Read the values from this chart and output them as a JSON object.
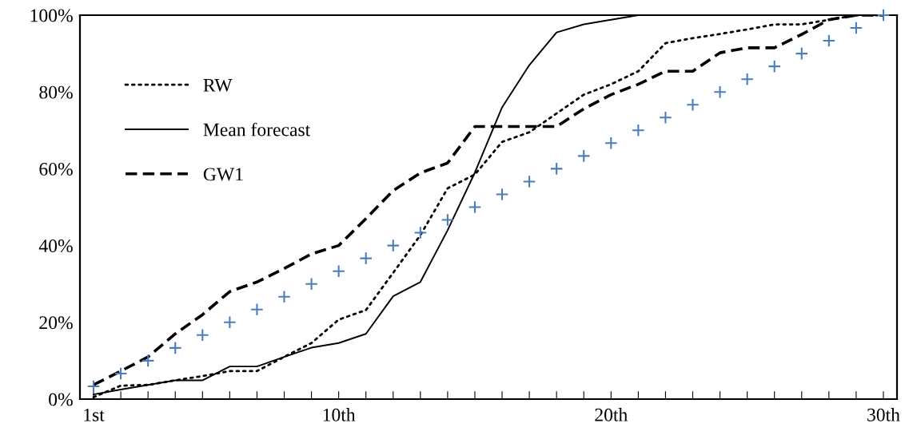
{
  "chart_data": {
    "type": "line",
    "x": [
      1,
      2,
      3,
      4,
      5,
      6,
      7,
      8,
      9,
      10,
      11,
      12,
      13,
      14,
      15,
      16,
      17,
      18,
      19,
      20,
      21,
      22,
      23,
      24,
      25,
      26,
      27,
      28,
      29,
      30
    ],
    "series": [
      {
        "name": "RW",
        "color": "#000000",
        "line_style": "dotted",
        "values": [
          0.5,
          3.5,
          3.7,
          4.9,
          6,
          7.3,
          7.3,
          11,
          14.6,
          20.7,
          23.2,
          32.9,
          42.7,
          54.9,
          58.5,
          67,
          69.5,
          74.4,
          79.3,
          82,
          85.4,
          92.7,
          94,
          95.1,
          96.3,
          97.6,
          97.6,
          98.8,
          100,
          100
        ]
      },
      {
        "name": "Mean forecast",
        "color": "#000000",
        "line_style": "solid",
        "values": [
          1.2,
          2.5,
          3.7,
          4.9,
          4.9,
          8.5,
          8.5,
          11,
          13.4,
          14.6,
          17,
          26.8,
          30.5,
          44,
          59,
          76,
          87,
          95.5,
          97.6,
          98.8,
          100,
          100,
          100,
          100,
          100,
          100,
          100,
          100,
          100,
          100
        ]
      },
      {
        "name": "GW1",
        "color": "#000000",
        "line_style": "dashed",
        "values": [
          3.7,
          7.3,
          11,
          17,
          22,
          28,
          30.5,
          34,
          37.8,
          40,
          47,
          54.3,
          58.9,
          61.5,
          71,
          71,
          71,
          71,
          75.6,
          79.3,
          82,
          85.4,
          85.4,
          90.2,
          91.5,
          91.5,
          95,
          98.8,
          100,
          100
        ]
      },
      {
        "type": "scatter",
        "marker": "cross",
        "color": "#4a7ebb",
        "values": [
          3.33,
          6.67,
          10,
          13.33,
          16.67,
          20,
          23.33,
          26.67,
          30,
          33.33,
          36.67,
          40,
          43.33,
          46.67,
          50,
          53.33,
          56.67,
          60,
          63.33,
          66.67,
          70,
          73.33,
          76.67,
          80,
          83.33,
          86.67,
          90,
          93.33,
          96.67,
          100
        ]
      }
    ],
    "xlim": [
      0.5,
      30.5
    ],
    "xticks": [
      {
        "value": 1,
        "label": "1st"
      },
      {
        "value": 2,
        "label": null
      },
      {
        "value": 3,
        "label": null
      },
      {
        "value": 4,
        "label": null
      },
      {
        "value": 5,
        "label": null
      },
      {
        "value": 6,
        "label": null
      },
      {
        "value": 7,
        "label": null
      },
      {
        "value": 8,
        "label": null
      },
      {
        "value": 9,
        "label": null
      },
      {
        "value": 10,
        "label": "10th"
      },
      {
        "value": 11,
        "label": null
      },
      {
        "value": 12,
        "label": null
      },
      {
        "value": 13,
        "label": null
      },
      {
        "value": 14,
        "label": null
      },
      {
        "value": 15,
        "label": null
      },
      {
        "value": 16,
        "label": null
      },
      {
        "value": 17,
        "label": null
      },
      {
        "value": 18,
        "label": null
      },
      {
        "value": 19,
        "label": null
      },
      {
        "value": 20,
        "label": "20th"
      },
      {
        "value": 21,
        "label": null
      },
      {
        "value": 22,
        "label": null
      },
      {
        "value": 23,
        "label": null
      },
      {
        "value": 24,
        "label": null
      },
      {
        "value": 25,
        "label": null
      },
      {
        "value": 26,
        "label": null
      },
      {
        "value": 27,
        "label": null
      },
      {
        "value": 28,
        "label": null
      },
      {
        "value": 29,
        "label": null
      },
      {
        "value": 30,
        "label": "30th"
      }
    ],
    "ylim": [
      0,
      100
    ],
    "yticks": [
      {
        "value": 0,
        "label": "0%"
      },
      {
        "value": 20,
        "label": "20%"
      },
      {
        "value": 40,
        "label": "40%"
      },
      {
        "value": 60,
        "label": "60%"
      },
      {
        "value": 80,
        "label": "80%"
      },
      {
        "value": 100,
        "label": "100%"
      }
    ],
    "grid": false,
    "legend": "top left"
  }
}
